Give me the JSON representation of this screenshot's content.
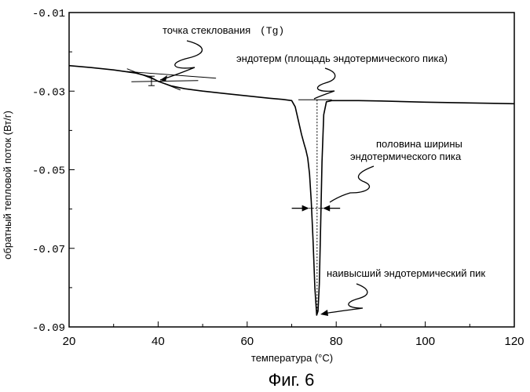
{
  "chart_data": {
    "type": "line",
    "title": "",
    "xlabel": "температура (°C)",
    "ylabel": "обратный тепловой поток (Вт/г)",
    "xlim": [
      20,
      120
    ],
    "ylim": [
      -0.09,
      -0.01
    ],
    "grid": false,
    "x_ticks": [
      20,
      40,
      60,
      80,
      100,
      120
    ],
    "x_tick_labels": [
      "20",
      "40",
      "60",
      "80",
      "100",
      "120"
    ],
    "y_ticks": [
      -0.01,
      -0.03,
      -0.05,
      -0.07,
      -0.09
    ],
    "y_tick_labels": [
      "-0.01",
      "-0.03",
      "-0.05",
      "-0.07",
      "-0.09"
    ],
    "series": [
      {
        "name": "обратный тепловой поток",
        "x": [
          20,
          25,
          30,
          35,
          38,
          40,
          43,
          46,
          50,
          55,
          60,
          65,
          68,
          70,
          70.8,
          71.5,
          72.2,
          72.8,
          73.2,
          73.6,
          74,
          74.4,
          74.8,
          75.2,
          75.6,
          75.9,
          76.2,
          76.5,
          76.8,
          77.2,
          77.8,
          79,
          85,
          90,
          100,
          110,
          120
        ],
        "y": [
          -0.0235,
          -0.024,
          -0.0246,
          -0.0254,
          -0.0263,
          -0.0275,
          -0.0287,
          -0.0294,
          -0.03,
          -0.0306,
          -0.0312,
          -0.0318,
          -0.0321,
          -0.0324,
          -0.034,
          -0.0375,
          -0.041,
          -0.0435,
          -0.045,
          -0.047,
          -0.051,
          -0.058,
          -0.068,
          -0.08,
          -0.087,
          -0.086,
          -0.079,
          -0.064,
          -0.048,
          -0.036,
          -0.0327,
          -0.0324,
          -0.0324,
          -0.0325,
          -0.0328,
          -0.033,
          -0.0332
        ]
      }
    ],
    "tg_tangent_lines": [
      {
        "x": [
          33,
          53
        ],
        "y": [
          -0.025,
          -0.0267
        ]
      },
      {
        "x": [
          34,
          49
        ],
        "y": [
          -0.0276,
          -0.0273
        ]
      },
      {
        "x": [
          33,
          45
        ],
        "y": [
          -0.0243,
          -0.0297
        ]
      }
    ],
    "tg_bracket": {
      "x": 38.5,
      "y": [
        -0.0262,
        -0.0286
      ]
    },
    "baseline_segment": {
      "x": [
        71.5,
        79
      ],
      "y": -0.0322
    },
    "peak_vertical_line": {
      "x": 75.7,
      "y": [
        -0.0322,
        -0.0872
      ]
    },
    "half_width_marker": {
      "y": -0.0598,
      "x_left": 73.9,
      "x_right": 77.0
    },
    "annotations": [
      "точка стеклования",
      "(Tg)",
      "эндотерм (площадь эндотермического пика)",
      "половина ширины",
      "эндотермического пика",
      "наивысший эндотермический пик"
    ]
  },
  "figure_caption": "Фиг. 6"
}
